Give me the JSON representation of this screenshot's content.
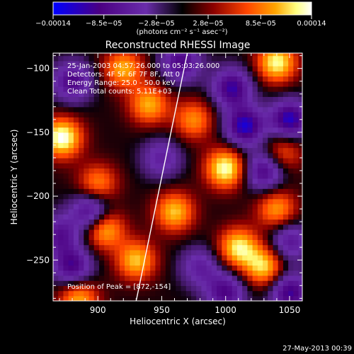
{
  "colorbar": {
    "ticks": [
      "−0.00014",
      "−8.5e−05",
      "−2.8e−05",
      "2.8e−05",
      "8.5e−05",
      "0.00014"
    ],
    "tick_values": [
      -0.00014,
      -8.5e-05,
      -2.8e-05,
      2.8e-05,
      8.5e-05,
      0.00014
    ],
    "range": [
      -0.00014,
      0.00014
    ],
    "unit_label": "(photons cm⁻² s⁻¹ asec⁻²)",
    "colors": [
      "#0000ff",
      "#4b0082",
      "#6a2dab",
      "#000000",
      "#8b0000",
      "#ff4500",
      "#ffa500",
      "#ffff80",
      "#ffffff"
    ]
  },
  "footer": {
    "date": "27-May-2013 00:39"
  },
  "chart_data": {
    "type": "heatmap",
    "title": "Reconstructed RHESSI Image",
    "xlabel": "Heliocentric X (arcsec)",
    "ylabel": "Heliocentric Y (arcsec)",
    "xlim": [
      865,
      1060
    ],
    "ylim": [
      -282,
      -88
    ],
    "xticks": [
      900,
      950,
      1000,
      1050
    ],
    "yticks": [
      -100,
      -150,
      -200,
      -250
    ],
    "annotations": [
      "25-Jan-2003 04:57:26.000 to 05:03:26.000",
      "Detectors: 4F 5F 6F 7F 8F, Att 0",
      "Energy Range: 25.0 - 50.0 keV",
      "Clean    Total counts: 5.11E+03"
    ],
    "peak_label": "Position of Peak = [872,-154]",
    "peak": [
      872,
      -154
    ],
    "limb_line": [
      [
        930,
        -282
      ],
      [
        970,
        -88
      ]
    ],
    "blobs": [
      {
        "x": 872,
        "y": -154,
        "v": 1.0
      },
      {
        "x": 1000,
        "y": -178,
        "v": 0.95
      },
      {
        "x": 1040,
        "y": -95,
        "v": 0.9
      },
      {
        "x": 1010,
        "y": -240,
        "v": 0.85
      },
      {
        "x": 1030,
        "y": -255,
        "v": 0.8
      },
      {
        "x": 905,
        "y": -225,
        "v": 0.8
      },
      {
        "x": 930,
        "y": -250,
        "v": 0.75
      },
      {
        "x": 960,
        "y": -212,
        "v": 0.75
      },
      {
        "x": 940,
        "y": -128,
        "v": 0.7
      },
      {
        "x": 920,
        "y": -100,
        "v": 0.7
      },
      {
        "x": 1040,
        "y": -210,
        "v": 0.65
      },
      {
        "x": 885,
        "y": -280,
        "v": 0.7
      },
      {
        "x": 975,
        "y": -140,
        "v": 0.6
      },
      {
        "x": 900,
        "y": -190,
        "v": 0.6
      },
      {
        "x": 1045,
        "y": -165,
        "v": 0.5
      },
      {
        "x": 965,
        "y": -95,
        "v": -0.7
      },
      {
        "x": 1005,
        "y": -115,
        "v": -0.8
      },
      {
        "x": 1015,
        "y": -145,
        "v": -0.9
      },
      {
        "x": 1050,
        "y": -140,
        "v": -0.9
      },
      {
        "x": 1030,
        "y": -180,
        "v": -0.75
      },
      {
        "x": 880,
        "y": -110,
        "v": -0.7
      },
      {
        "x": 895,
        "y": -212,
        "v": -0.8
      },
      {
        "x": 880,
        "y": -255,
        "v": -0.75
      },
      {
        "x": 1000,
        "y": -275,
        "v": -0.7
      },
      {
        "x": 1050,
        "y": -275,
        "v": -0.8
      },
      {
        "x": 1050,
        "y": -235,
        "v": -0.6
      },
      {
        "x": 980,
        "y": -255,
        "v": -0.5
      },
      {
        "x": 950,
        "y": -170,
        "v": -0.5
      },
      {
        "x": 870,
        "y": -230,
        "v": -0.6
      }
    ]
  }
}
